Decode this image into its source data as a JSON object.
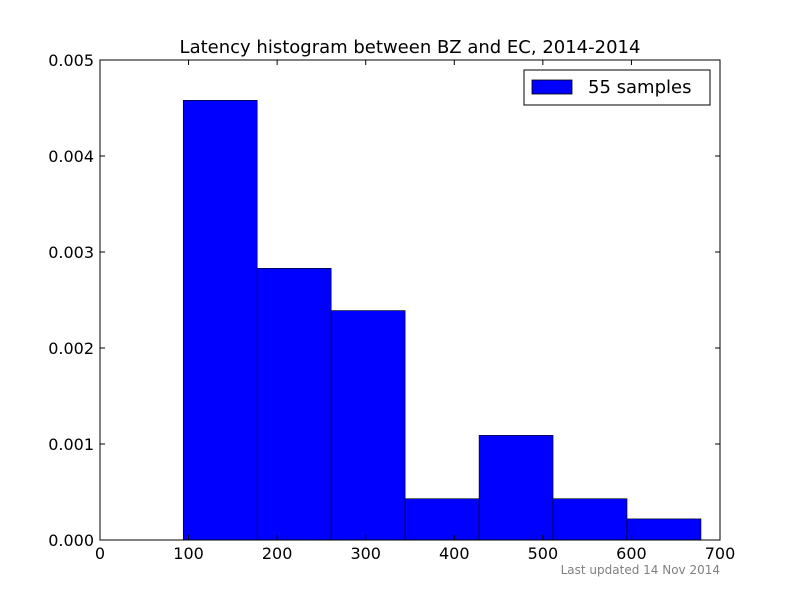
{
  "chart_data": {
    "type": "bar",
    "title": "Latency histogram between BZ and EC, 2014-2014",
    "xlabel": "",
    "ylabel": "",
    "xlim": [
      0,
      700
    ],
    "ylim": [
      0,
      0.005
    ],
    "x_ticks": [
      0,
      100,
      200,
      300,
      400,
      500,
      600,
      700
    ],
    "x_tick_labels": [
      "0",
      "100",
      "200",
      "300",
      "400",
      "500",
      "600",
      "700"
    ],
    "y_ticks": [
      0,
      0.001,
      0.002,
      0.003,
      0.004,
      0.005
    ],
    "y_tick_labels": [
      "0.000",
      "0.001",
      "0.002",
      "0.003",
      "0.004",
      "0.005"
    ],
    "grid": false,
    "legend_position": "top-right",
    "series": [
      {
        "name": "55 samples",
        "color": "#0000ff",
        "bins": [
          {
            "start": 94,
            "end": 177.5,
            "value": 0.00458
          },
          {
            "start": 177.5,
            "end": 261,
            "value": 0.00283
          },
          {
            "start": 261,
            "end": 344.5,
            "value": 0.00239
          },
          {
            "start": 344.5,
            "end": 428,
            "value": 0.00043
          },
          {
            "start": 428,
            "end": 511.5,
            "value": 0.00109
          },
          {
            "start": 511.5,
            "end": 595,
            "value": 0.00043
          },
          {
            "start": 595,
            "end": 678.5,
            "value": 0.00022
          }
        ]
      }
    ]
  },
  "footer": {
    "note": "Last updated 14 Nov 2014"
  }
}
